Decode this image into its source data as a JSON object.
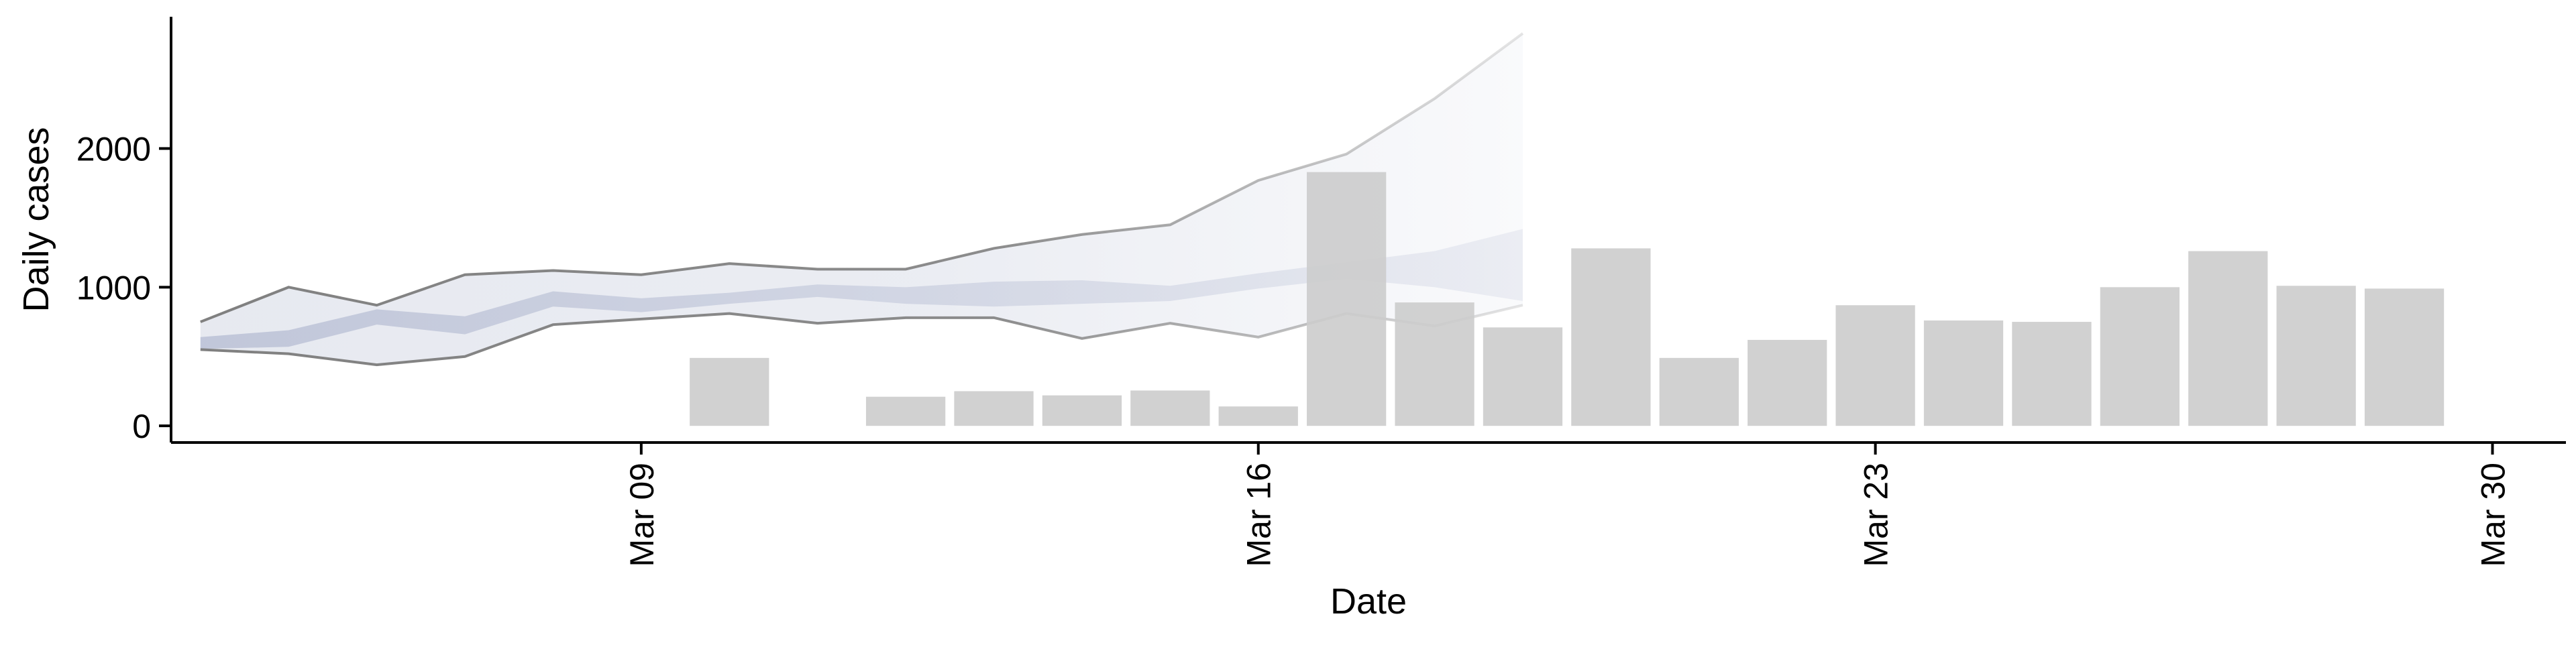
{
  "chart_data": {
    "type": "bar",
    "xlabel": "Date",
    "ylabel": "Daily cases",
    "x_ticks": [
      "Mar 09",
      "Mar 16",
      "Mar 23",
      "Mar 30"
    ],
    "y_ticks": [
      "0",
      "1000",
      "2000"
    ],
    "ylim": [
      -120,
      2950
    ],
    "xlim": [
      "2020-03-03T16:00",
      "2020-03-30T20:00"
    ],
    "grid": false,
    "legend": "none",
    "colors": {
      "bars": "#cccccc",
      "band": "#c5cbdc",
      "median_band": "#b4bbd2",
      "band_lines": "#808080",
      "axis": "#000000"
    },
    "bars": [
      {
        "date": "2020-03-10",
        "value": 490
      },
      {
        "date": "2020-03-12",
        "value": 210
      },
      {
        "date": "2020-03-13",
        "value": 250
      },
      {
        "date": "2020-03-14",
        "value": 220
      },
      {
        "date": "2020-03-15",
        "value": 255
      },
      {
        "date": "2020-03-16",
        "value": 140
      },
      {
        "date": "2020-03-17",
        "value": 1830
      },
      {
        "date": "2020-03-18",
        "value": 890
      },
      {
        "date": "2020-03-19",
        "value": 710
      },
      {
        "date": "2020-03-20",
        "value": 1280
      },
      {
        "date": "2020-03-21",
        "value": 490
      },
      {
        "date": "2020-03-22",
        "value": 620
      },
      {
        "date": "2020-03-23",
        "value": 870
      },
      {
        "date": "2020-03-24",
        "value": 760
      },
      {
        "date": "2020-03-25",
        "value": 750
      },
      {
        "date": "2020-03-26",
        "value": 1000
      },
      {
        "date": "2020-03-27",
        "value": 1260
      },
      {
        "date": "2020-03-28",
        "value": 1010
      },
      {
        "date": "2020-03-29",
        "value": 990
      }
    ],
    "band": [
      {
        "date": "2020-03-04",
        "lower": 550,
        "upper": 750,
        "mid_lower": 555,
        "mid_upper": 640
      },
      {
        "date": "2020-03-05",
        "lower": 520,
        "upper": 1000,
        "mid_lower": 570,
        "mid_upper": 690
      },
      {
        "date": "2020-03-06",
        "lower": 440,
        "upper": 870,
        "mid_lower": 730,
        "mid_upper": 840
      },
      {
        "date": "2020-03-07",
        "lower": 500,
        "upper": 1090,
        "mid_lower": 660,
        "mid_upper": 790
      },
      {
        "date": "2020-03-08",
        "lower": 730,
        "upper": 1120,
        "mid_lower": 860,
        "mid_upper": 970
      },
      {
        "date": "2020-03-09",
        "lower": 770,
        "upper": 1090,
        "mid_lower": 820,
        "mid_upper": 920
      },
      {
        "date": "2020-03-10",
        "lower": 810,
        "upper": 1170,
        "mid_lower": 880,
        "mid_upper": 960
      },
      {
        "date": "2020-03-11",
        "lower": 740,
        "upper": 1130,
        "mid_lower": 930,
        "mid_upper": 1020
      },
      {
        "date": "2020-03-12",
        "lower": 780,
        "upper": 1130,
        "mid_lower": 880,
        "mid_upper": 1000
      },
      {
        "date": "2020-03-13",
        "lower": 780,
        "upper": 1280,
        "mid_lower": 860,
        "mid_upper": 1040
      },
      {
        "date": "2020-03-14",
        "lower": 630,
        "upper": 1380,
        "mid_lower": 880,
        "mid_upper": 1050
      },
      {
        "date": "2020-03-15",
        "lower": 740,
        "upper": 1450,
        "mid_lower": 900,
        "mid_upper": 1010
      },
      {
        "date": "2020-03-16",
        "lower": 640,
        "upper": 1770,
        "mid_lower": 990,
        "mid_upper": 1100
      },
      {
        "date": "2020-03-17",
        "lower": 810,
        "upper": 1960,
        "mid_lower": 1060,
        "mid_upper": 1180
      },
      {
        "date": "2020-03-18",
        "lower": 720,
        "upper": 2360,
        "mid_lower": 1000,
        "mid_upper": 1260
      },
      {
        "date": "2020-03-19",
        "lower": 870,
        "upper": 2830,
        "mid_lower": 900,
        "mid_upper": 1420
      }
    ]
  }
}
